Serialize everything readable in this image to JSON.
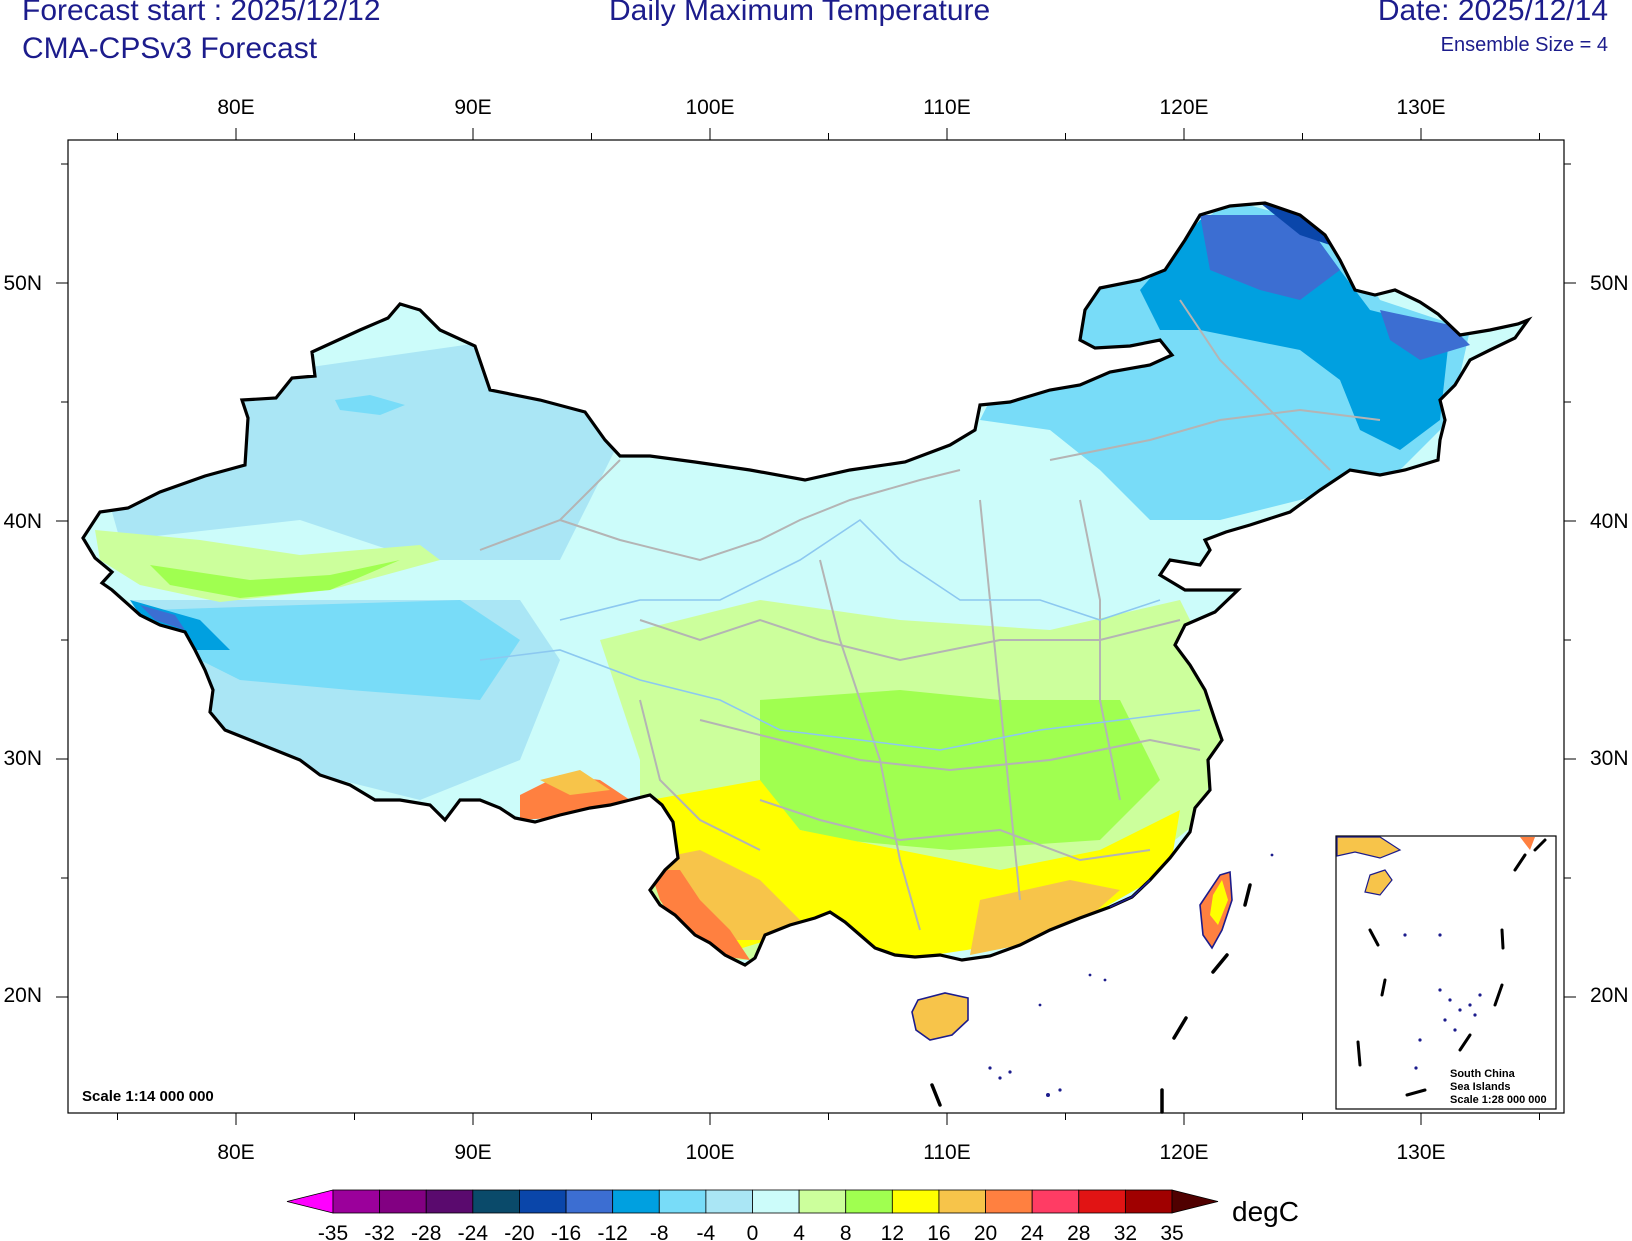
{
  "header": {
    "forecast_start": "Forecast start : 2025/12/12",
    "model": "CMA-CPSv3 Forecast",
    "title": "Daily Maximum Temperature",
    "date": "Date: 2025/12/14",
    "ensemble": "Ensemble Size = 4"
  },
  "map": {
    "lon_labels": [
      "80E",
      "90E",
      "100E",
      "110E",
      "120E",
      "130E"
    ],
    "lat_labels": [
      "50N",
      "40N",
      "30N",
      "20N"
    ],
    "scale_label": "Scale 1:14 000 000",
    "inset": {
      "line1": "South China",
      "line2": "Sea Islands",
      "line3": "Scale 1:28 000 000"
    }
  },
  "colorbar": {
    "unit": "degC",
    "ticks": [
      "-35",
      "-32",
      "-28",
      "-24",
      "-20",
      "-16",
      "-12",
      "-8",
      "-4",
      "0",
      "4",
      "8",
      "12",
      "16",
      "20",
      "24",
      "28",
      "32",
      "35"
    ],
    "colors": [
      "#ff00ff",
      "#9b009b",
      "#820082",
      "#5a0a6e",
      "#0a4a6a",
      "#0a46aa",
      "#3c6ed2",
      "#00a0e0",
      "#78dcf8",
      "#aae6f5",
      "#ccfcfa",
      "#ccff9c",
      "#a0ff50",
      "#ffff00",
      "#f7c44a",
      "#ff8040",
      "#ff3c64",
      "#e11414",
      "#a00000",
      "#500000"
    ]
  }
}
